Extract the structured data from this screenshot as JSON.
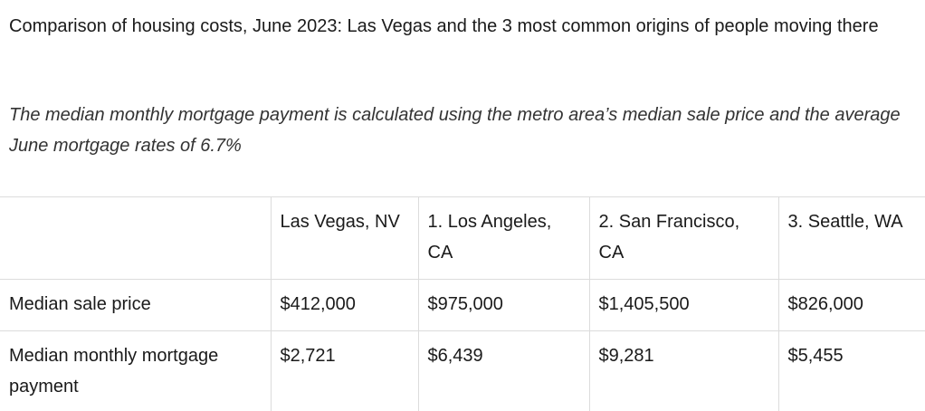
{
  "title": "Comparison of housing costs, June 2023: Las Vegas and the 3 most common origins of people moving there",
  "subtitle": "The median monthly mortgage payment is calculated using the metro area’s median sale price and the average June mortgage rates of 6.7%",
  "table": {
    "headers": [
      "",
      "Las Vegas, NV",
      "1. Los Angeles, CA",
      "2. San Francisco, CA",
      "3. Seattle, WA"
    ],
    "rows": [
      {
        "label": "Median sale price",
        "values": [
          "$412,000",
          "$975,000",
          "$1,405,500",
          "$826,000"
        ]
      },
      {
        "label": "Median monthly mortgage payment",
        "values": [
          "$2,721",
          "$6,439",
          "$9,281",
          "$5,455"
        ]
      }
    ]
  }
}
